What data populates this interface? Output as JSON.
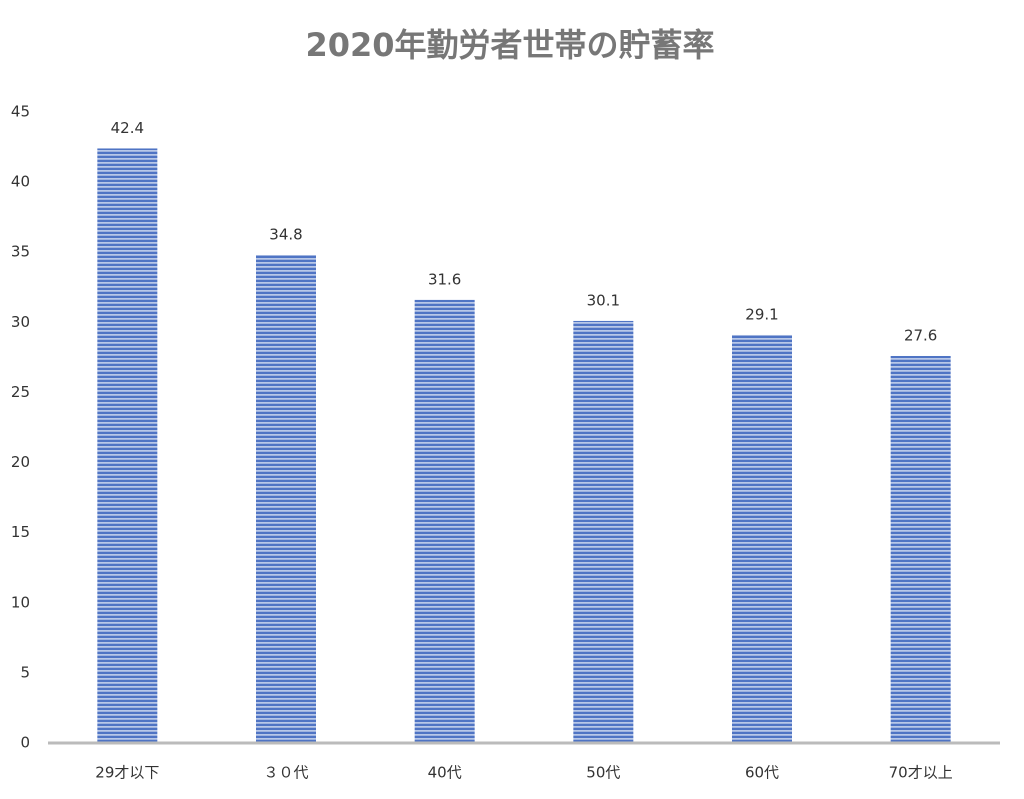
{
  "chart_data": {
    "type": "bar",
    "title": "2020年勤労者世帯の貯蓄率",
    "categories": [
      "29才以下",
      "３０代",
      "40代",
      "50代",
      "60代",
      "70才以上"
    ],
    "values": [
      42.4,
      34.8,
      31.6,
      30.1,
      29.1,
      27.6
    ],
    "color": "#4f74c4",
    "ylim": [
      0,
      45
    ],
    "yticks": [
      0,
      5,
      10,
      15,
      20,
      25,
      30,
      35,
      40,
      45
    ],
    "grid": false
  }
}
